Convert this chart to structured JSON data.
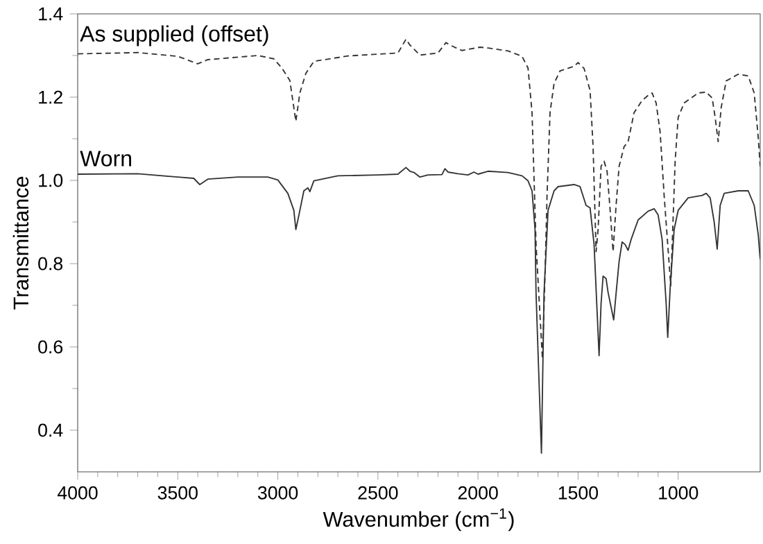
{
  "chart_data": {
    "type": "line",
    "xlabel": "Wavenumber (cm$^{−1}$)",
    "ylabel": "Transmittance",
    "xlim": [
      4000,
      590
    ],
    "ylim": [
      0.3,
      1.4
    ],
    "xticks": [
      4000,
      3500,
      3000,
      2500,
      2000,
      1500,
      1000
    ],
    "yticks": [
      0.4,
      0.6,
      0.8,
      {
        "value": 1,
        "label": "1.0"
      },
      1.2,
      1.4
    ],
    "grid": false,
    "legend": false,
    "marker": "none",
    "series": [
      {
        "name": "As supplied (offset)",
        "color": "#333333",
        "line_style": "dashed",
        "x": [
          4000,
          3700,
          3500,
          3400,
          3350,
          3100,
          3020,
          2980,
          2940,
          2910,
          2890,
          2860,
          2820,
          2650,
          2400,
          2360,
          2340,
          2290,
          2200,
          2160,
          2140,
          2080,
          1990,
          1950,
          1850,
          1780,
          1750,
          1730,
          1710,
          1678,
          1665,
          1655,
          1640,
          1620,
          1590,
          1520,
          1500,
          1470,
          1450,
          1440,
          1425,
          1410,
          1400,
          1385,
          1370,
          1355,
          1340,
          1325,
          1310,
          1295,
          1270,
          1250,
          1220,
          1180,
          1150,
          1130,
          1110,
          1090,
          1070,
          1037,
          1015,
          1000,
          970,
          900,
          860,
          830,
          815,
          800,
          785,
          760,
          700,
          650,
          620,
          600,
          590
        ],
        "values": [
          1.304,
          1.307,
          1.298,
          1.28,
          1.29,
          1.3,
          1.292,
          1.27,
          1.24,
          1.142,
          1.21,
          1.257,
          1.286,
          1.299,
          1.306,
          1.339,
          1.325,
          1.301,
          1.306,
          1.331,
          1.325,
          1.312,
          1.32,
          1.318,
          1.311,
          1.298,
          1.27,
          1.163,
          0.846,
          0.571,
          0.776,
          0.964,
          1.163,
          1.233,
          1.263,
          1.274,
          1.283,
          1.269,
          1.233,
          1.216,
          1.081,
          0.829,
          0.882,
          1.034,
          1.046,
          1.022,
          0.93,
          0.829,
          0.94,
          1.034,
          1.081,
          1.093,
          1.163,
          1.192,
          1.204,
          1.21,
          1.186,
          1.116,
          0.964,
          0.747,
          1.046,
          1.151,
          1.186,
          1.21,
          1.212,
          1.198,
          1.151,
          1.093,
          1.175,
          1.239,
          1.255,
          1.251,
          1.21,
          1.104,
          1.034
        ]
      },
      {
        "name": "Worn",
        "color": "#333333",
        "line_style": "solid",
        "x": [
          4000,
          3700,
          3500,
          3420,
          3390,
          3350,
          3200,
          3050,
          3000,
          2950,
          2920,
          2910,
          2895,
          2870,
          2850,
          2840,
          2820,
          2700,
          2500,
          2400,
          2360,
          2340,
          2320,
          2290,
          2250,
          2180,
          2165,
          2150,
          2100,
          2050,
          2020,
          2000,
          1950,
          1850,
          1780,
          1750,
          1730,
          1715,
          1710,
          1683,
          1670,
          1650,
          1620,
          1600,
          1520,
          1490,
          1460,
          1440,
          1420,
          1395,
          1385,
          1375,
          1360,
          1350,
          1322,
          1310,
          1295,
          1280,
          1265,
          1250,
          1235,
          1200,
          1150,
          1120,
          1100,
          1080,
          1060,
          1052,
          1040,
          1020,
          1000,
          950,
          880,
          860,
          840,
          820,
          805,
          790,
          770,
          700,
          650,
          620,
          600,
          590
        ],
        "values": [
          1.015,
          1.016,
          1.008,
          1.005,
          0.99,
          1.003,
          1.008,
          1.008,
          1.001,
          0.969,
          0.928,
          0.882,
          0.916,
          0.975,
          0.982,
          0.973,
          0.999,
          1.011,
          1.013,
          1.015,
          1.031,
          1.022,
          1.019,
          1.008,
          1.013,
          1.014,
          1.028,
          1.02,
          1.016,
          1.013,
          1.02,
          1.015,
          1.022,
          1.019,
          1.011,
          0.999,
          0.975,
          0.882,
          0.73,
          0.345,
          0.73,
          0.928,
          0.975,
          0.985,
          0.99,
          0.985,
          0.94,
          0.934,
          0.846,
          0.579,
          0.705,
          0.77,
          0.764,
          0.731,
          0.665,
          0.729,
          0.805,
          0.852,
          0.846,
          0.832,
          0.858,
          0.905,
          0.926,
          0.932,
          0.917,
          0.858,
          0.705,
          0.623,
          0.74,
          0.882,
          0.928,
          0.958,
          0.964,
          0.969,
          0.958,
          0.9,
          0.835,
          0.94,
          0.969,
          0.975,
          0.975,
          0.94,
          0.87,
          0.811
        ]
      }
    ]
  }
}
